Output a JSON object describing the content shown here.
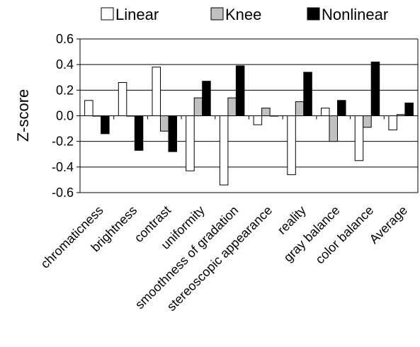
{
  "chart_data": {
    "type": "bar",
    "title": "",
    "xlabel": "",
    "ylabel": "Z-score",
    "ylim": [
      -0.6,
      0.6
    ],
    "yticks": [
      "0.6",
      "0.4",
      "0.2",
      "0.0",
      "-0.2",
      "-0.4",
      "-0.6"
    ],
    "grid": true,
    "legend_position": "top",
    "categories": [
      "chromaticness",
      "brightness",
      "contrast",
      "uniformity",
      "smoothness of gradation",
      "stereoscopic appearance",
      "reality",
      "gray balance",
      "color balance",
      "Average"
    ],
    "series": [
      {
        "name": "Linear",
        "color": "#ffffff",
        "values": [
          0.12,
          0.26,
          0.38,
          -0.43,
          -0.54,
          -0.07,
          -0.46,
          0.06,
          -0.35,
          -0.11
        ]
      },
      {
        "name": "Knee",
        "color": "#c0c0c0",
        "values": [
          0.0,
          0.0,
          -0.12,
          0.14,
          0.14,
          0.06,
          0.11,
          -0.2,
          -0.09,
          0.01
        ]
      },
      {
        "name": "Nonlinear",
        "color": "#000000",
        "values": [
          -0.14,
          -0.27,
          -0.28,
          0.27,
          0.39,
          0.0,
          0.34,
          0.12,
          0.42,
          0.1
        ]
      }
    ]
  }
}
